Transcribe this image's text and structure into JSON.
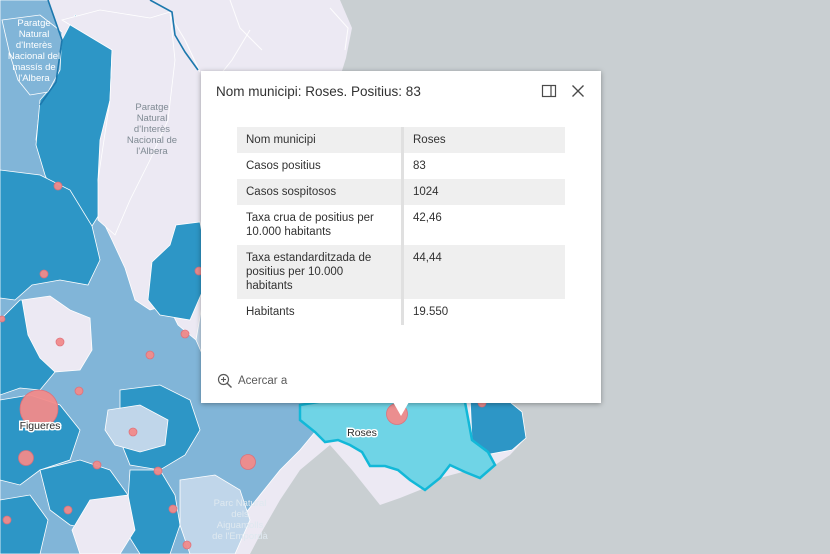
{
  "popup": {
    "title": "Nom municipi: Roses. Positius: 83",
    "rows": [
      {
        "key": "Nom municipi",
        "value": "Roses"
      },
      {
        "key": "Casos positius",
        "value": "83"
      },
      {
        "key": "Casos sospitosos",
        "value": "1024"
      },
      {
        "key": "Taxa crua de positius per 10.000 habitants",
        "value": "42,46"
      },
      {
        "key": "Taxa estandarditzada de positius per 10.000 habitants",
        "value": "44,44"
      },
      {
        "key": "Habitants",
        "value": "19.550"
      }
    ],
    "zoom_label": "Acercar a",
    "icons": [
      "dock-icon",
      "close-icon",
      "zoom-in-icon"
    ]
  },
  "map": {
    "labels": {
      "paratge_top": "Paratge Natural d'Interès Nacional del massís de l'Albera",
      "paratge_mid": "Paratge Natural d'Interès Nacional de l'Albera",
      "figueres": "Figueres",
      "roses": "Roses",
      "parc": "Parc Natural dels Aiguamolls de l'Empordà"
    },
    "colors": {
      "sea": "#c9cfd2",
      "land_light": "#ece9f3",
      "choropleth_dark": "#2d96c6",
      "choropleth_mid": "#81b5d8",
      "choropleth_light": "#c0d6ea",
      "selected_fill": "#6fd4e6",
      "selected_outline": "#12b8d8",
      "case_circle": "#f28b8b"
    }
  }
}
